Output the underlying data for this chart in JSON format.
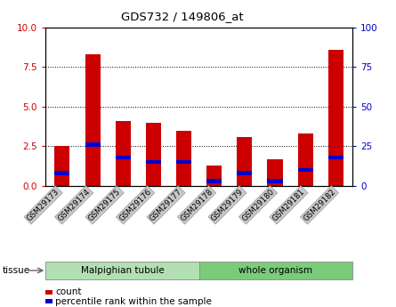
{
  "title": "GDS732 / 149806_at",
  "samples": [
    "GSM29173",
    "GSM29174",
    "GSM29175",
    "GSM29176",
    "GSM29177",
    "GSM29178",
    "GSM29179",
    "GSM29180",
    "GSM29181",
    "GSM29182"
  ],
  "count_values": [
    2.5,
    8.3,
    4.1,
    4.0,
    3.5,
    1.3,
    3.1,
    1.7,
    3.3,
    8.6
  ],
  "percentile_values": [
    0.8,
    2.6,
    1.8,
    1.5,
    1.5,
    0.3,
    0.8,
    0.3,
    1.0,
    1.8
  ],
  "ylim_left": [
    0,
    10
  ],
  "ylim_right": [
    0,
    100
  ],
  "yticks_left": [
    0,
    2.5,
    5,
    7.5,
    10
  ],
  "yticks_right": [
    0,
    25,
    50,
    75,
    100
  ],
  "gridlines": [
    2.5,
    5.0,
    7.5
  ],
  "bar_color": "#cc0000",
  "percentile_color": "#0000cc",
  "tissue_malpighian_color": "#b2e0b2",
  "tissue_whole_color": "#7acc7a",
  "tissue_label": "tissue",
  "legend_count_label": "count",
  "legend_percentile_label": "percentile rank within the sample",
  "xlabel_color_left": "#cc0000",
  "xlabel_color_right": "#0000cc",
  "tick_bg_color": "#c8c8c8",
  "bar_width": 0.5,
  "bg_color": "#ffffff",
  "plot_bg_color": "#ffffff"
}
